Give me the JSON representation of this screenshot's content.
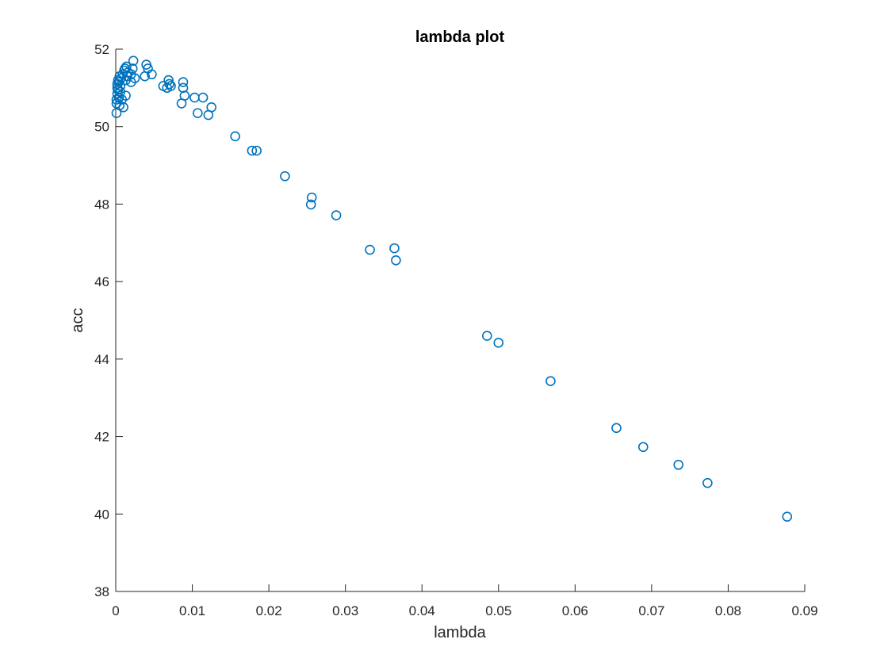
{
  "chart_data": {
    "type": "scatter",
    "title": "lambda plot",
    "xlabel": "lambda",
    "ylabel": "acc",
    "xlim": [
      0,
      0.09
    ],
    "ylim": [
      38,
      52
    ],
    "xticks": [
      0,
      0.01,
      0.02,
      0.03,
      0.04,
      0.05,
      0.06,
      0.07,
      0.08,
      0.09
    ],
    "xtick_labels": [
      "0",
      "0.01",
      "0.02",
      "0.03",
      "0.04",
      "0.05",
      "0.06",
      "0.07",
      "0.08",
      "0.09"
    ],
    "yticks": [
      38,
      40,
      42,
      44,
      46,
      48,
      50,
      52
    ],
    "ytick_labels": [
      "38",
      "40",
      "42",
      "44",
      "46",
      "48",
      "50",
      "52"
    ],
    "grid": false,
    "box": "off",
    "marker": "circle-open",
    "series_color": "#0072BD",
    "points": [
      [
        0.0001,
        50.35
      ],
      [
        0.0001,
        50.6
      ],
      [
        0.0001,
        50.7
      ],
      [
        0.0002,
        50.85
      ],
      [
        0.0002,
        51.0
      ],
      [
        0.0002,
        51.1
      ],
      [
        0.0003,
        51.2
      ],
      [
        0.0003,
        50.95
      ],
      [
        0.0004,
        50.75
      ],
      [
        0.0004,
        51.15
      ],
      [
        0.0005,
        51.3
      ],
      [
        0.0005,
        50.55
      ],
      [
        0.0006,
        50.9
      ],
      [
        0.0006,
        51.05
      ],
      [
        0.0007,
        51.25
      ],
      [
        0.0008,
        50.7
      ],
      [
        0.0009,
        51.35
      ],
      [
        0.001,
        50.5
      ],
      [
        0.0011,
        51.45
      ],
      [
        0.0012,
        51.5
      ],
      [
        0.0013,
        50.8
      ],
      [
        0.0013,
        51.2
      ],
      [
        0.0014,
        51.55
      ],
      [
        0.0015,
        51.3
      ],
      [
        0.0016,
        51.4
      ],
      [
        0.002,
        51.35
      ],
      [
        0.002,
        51.15
      ],
      [
        0.0022,
        51.5
      ],
      [
        0.0023,
        51.7
      ],
      [
        0.0025,
        51.25
      ],
      [
        0.0038,
        51.3
      ],
      [
        0.004,
        51.6
      ],
      [
        0.0042,
        51.5
      ],
      [
        0.0047,
        51.35
      ],
      [
        0.0062,
        51.05
      ],
      [
        0.0067,
        51.0
      ],
      [
        0.0069,
        51.2
      ],
      [
        0.007,
        51.1
      ],
      [
        0.0072,
        51.05
      ],
      [
        0.0086,
        50.6
      ],
      [
        0.0088,
        51.15
      ],
      [
        0.0088,
        51.0
      ],
      [
        0.009,
        50.8
      ],
      [
        0.0103,
        50.75
      ],
      [
        0.0107,
        50.35
      ],
      [
        0.0114,
        50.75
      ],
      [
        0.0121,
        50.3
      ],
      [
        0.0125,
        50.5
      ],
      [
        0.0156,
        49.75
      ],
      [
        0.0178,
        49.38
      ],
      [
        0.0184,
        49.38
      ],
      [
        0.0221,
        48.72
      ],
      [
        0.0255,
        47.99
      ],
      [
        0.0256,
        48.17
      ],
      [
        0.0288,
        47.71
      ],
      [
        0.0332,
        46.82
      ],
      [
        0.0364,
        46.86
      ],
      [
        0.0366,
        46.55
      ],
      [
        0.0485,
        44.6
      ],
      [
        0.05,
        44.42
      ],
      [
        0.0568,
        43.43
      ],
      [
        0.0654,
        42.22
      ],
      [
        0.0689,
        41.73
      ],
      [
        0.0735,
        41.27
      ],
      [
        0.0773,
        40.8
      ],
      [
        0.0877,
        39.93
      ]
    ]
  }
}
